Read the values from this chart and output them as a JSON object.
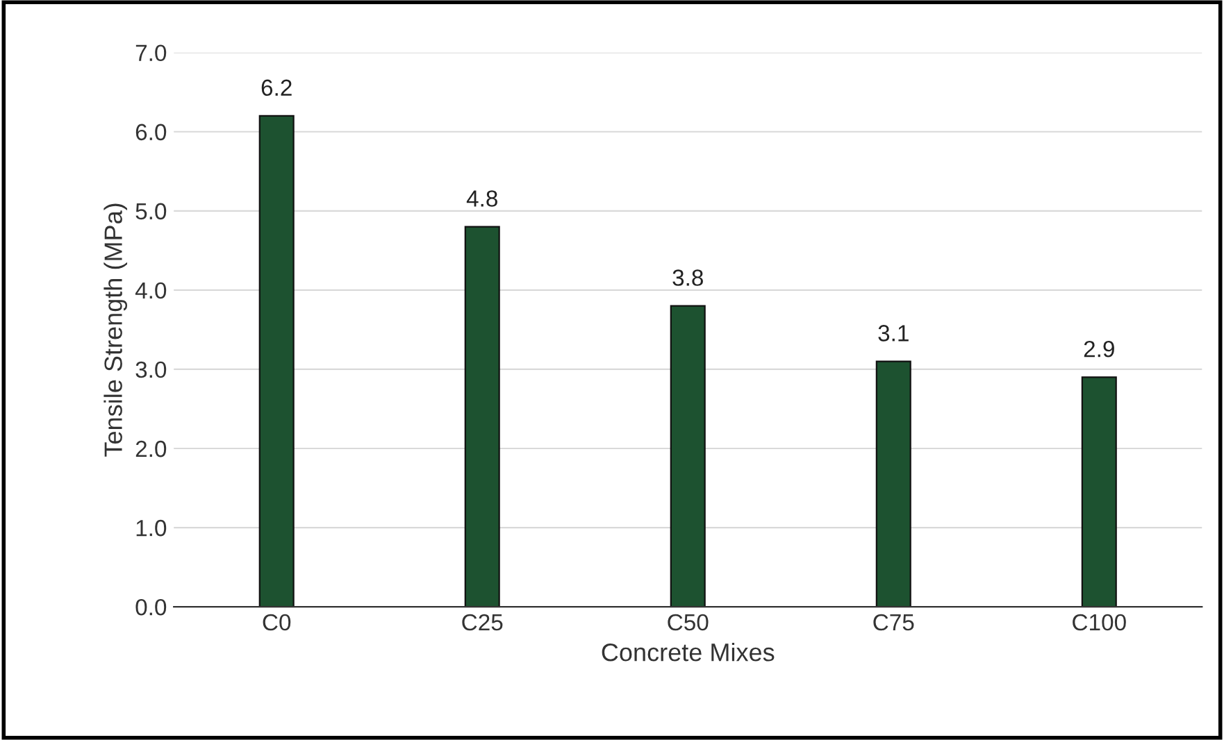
{
  "chart_data": {
    "type": "bar",
    "xlabel": "Concrete Mixes",
    "ylabel": "Tensile Strength (MPa)",
    "categories": [
      "C0",
      "C25",
      "C50",
      "C75",
      "C100"
    ],
    "values": [
      6.2,
      4.8,
      3.8,
      3.1,
      2.9
    ],
    "color": "#1d5230",
    "ylim": [
      0,
      7
    ],
    "yticks": [
      {
        "value": 0,
        "label": "0.0"
      },
      {
        "value": 1,
        "label": "1.0"
      },
      {
        "value": 2,
        "label": "2.0"
      },
      {
        "value": 3,
        "label": "3.0"
      },
      {
        "value": 4,
        "label": "4.0"
      },
      {
        "value": 5,
        "label": "5.0"
      },
      {
        "value": 6,
        "label": "6.0"
      },
      {
        "value": 7,
        "label": "7.0"
      }
    ],
    "grid": "y",
    "data_labels": true,
    "legend": false
  }
}
